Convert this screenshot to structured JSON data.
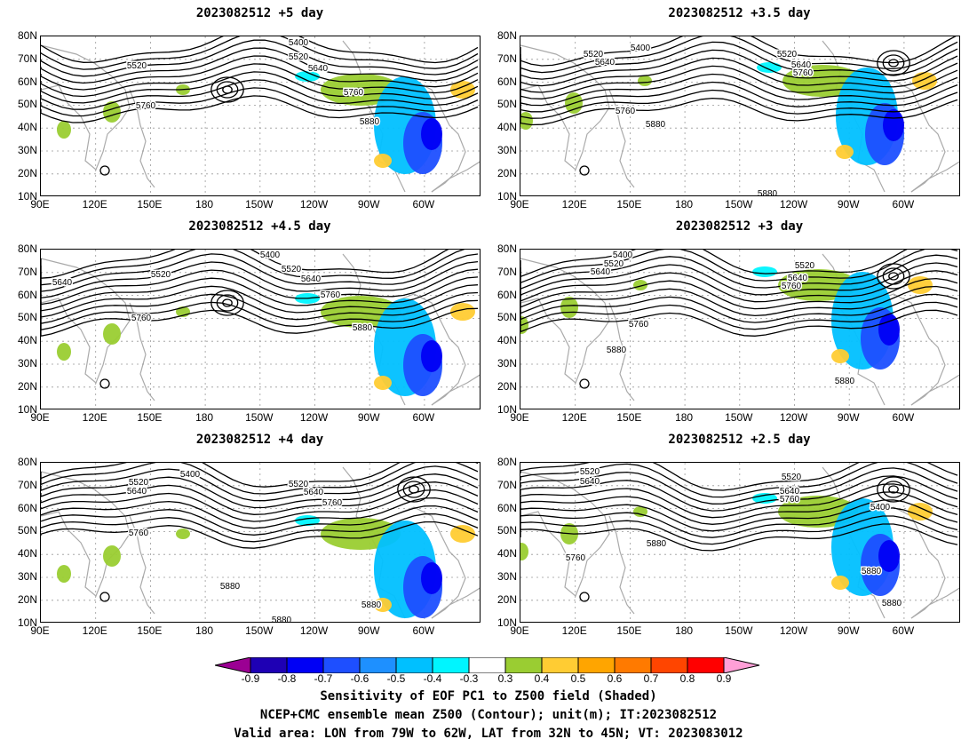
{
  "panels": [
    {
      "title": "2023082512 +5 day"
    },
    {
      "title": "2023082512 +3.5 day"
    },
    {
      "title": "2023082512 +4.5 day"
    },
    {
      "title": "2023082512 +3 day"
    },
    {
      "title": "2023082512 +4 day"
    },
    {
      "title": "2023082512 +2.5 day"
    }
  ],
  "axes": {
    "lat_labels": [
      "80N",
      "70N",
      "60N",
      "50N",
      "40N",
      "30N",
      "20N",
      "10N"
    ],
    "lon_labels": [
      "90E",
      "120E",
      "150E",
      "180",
      "150W",
      "120W",
      "90W",
      "60W"
    ]
  },
  "contour_labels": {
    "p0": [
      "5400",
      "5520",
      "5640",
      "5520",
      "5760",
      "5760",
      "5880"
    ],
    "p1": [
      "5400",
      "5520",
      "5640",
      "5520",
      "5640",
      "5760",
      "5760",
      "5880",
      "5880"
    ],
    "p2": [
      "5400",
      "5520",
      "5640",
      "5520",
      "5640",
      "5760",
      "5760",
      "5880"
    ],
    "p3": [
      "5400",
      "5520",
      "5640",
      "5520",
      "5640",
      "5760",
      "5760",
      "5880",
      "5880"
    ],
    "p4": [
      "5400",
      "5520",
      "5640",
      "5520",
      "5640",
      "5760",
      "5760",
      "5880",
      "5880",
      "5880"
    ],
    "p5": [
      "5520",
      "5640",
      "5520",
      "5640",
      "5760",
      "5880",
      "5760",
      "5400",
      "5880",
      "5880"
    ]
  },
  "colorbar": {
    "colors": [
      "#9b0093",
      "#1e00b4",
      "#0000f5",
      "#1e4fff",
      "#1e90ff",
      "#00c0ff",
      "#00f5ff",
      "#ffffff",
      "#9acd32",
      "#ffcc33",
      "#ffa500",
      "#ff7a00",
      "#ff4500",
      "#ff0000",
      "#ff9fd7"
    ],
    "labels": [
      "-0.9",
      "-0.8",
      "-0.7",
      "-0.6",
      "-0.5",
      "-0.4",
      "-0.3",
      "0.3",
      "0.4",
      "0.5",
      "0.6",
      "0.7",
      "0.8",
      "0.9"
    ]
  },
  "caption": {
    "line1": "Sensitivity of EOF PC1 to Z500 field (Shaded)",
    "line2": "NCEP+CMC ensemble mean Z500 (Contour); unit(m); IT:2023082512",
    "line3": "Valid area: LON from 79W to 62W, LAT from 32N to 45N; VT: 2023083012"
  }
}
